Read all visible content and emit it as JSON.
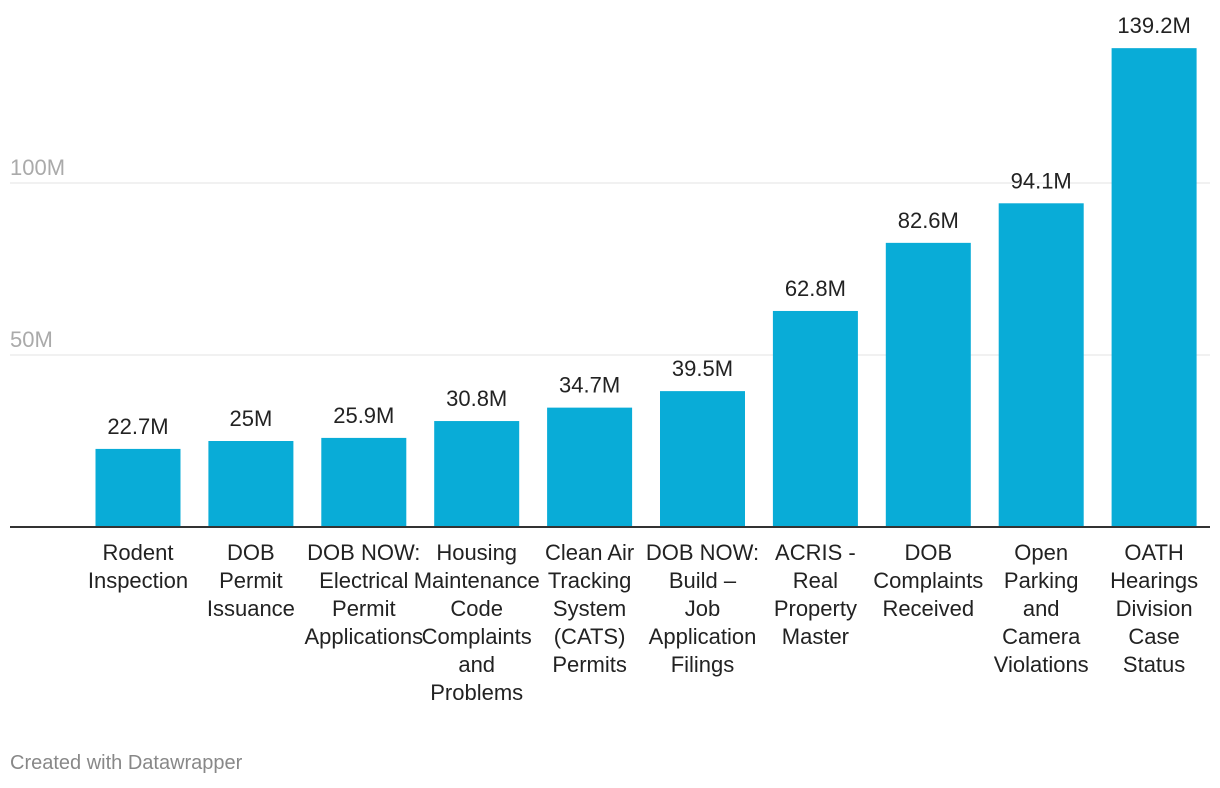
{
  "chart_data": {
    "type": "bar",
    "categories": [
      [
        "Rodent",
        "Inspection"
      ],
      [
        "DOB",
        "Permit",
        "Issuance"
      ],
      [
        "DOB NOW:",
        "Electrical",
        "Permit",
        "Applications"
      ],
      [
        "Housing",
        "Maintenance",
        "Code",
        "Complaints",
        "and",
        "Problems"
      ],
      [
        "Clean Air",
        "Tracking",
        "System",
        "(CATS)",
        "Permits"
      ],
      [
        "DOB NOW:",
        "Build –",
        "Job",
        "Application",
        "Filings"
      ],
      [
        "ACRIS -",
        "Real",
        "Property",
        "Master"
      ],
      [
        "DOB",
        "Complaints",
        "Received"
      ],
      [
        "Open",
        "Parking",
        "and",
        "Camera",
        "Violations"
      ],
      [
        "OATH",
        "Hearings",
        "Division",
        "Case",
        "Status"
      ]
    ],
    "values": [
      22.7,
      25,
      25.9,
      30.8,
      34.7,
      39.5,
      62.8,
      82.6,
      94.1,
      139.2
    ],
    "value_labels": [
      "22.7M",
      "25M",
      "25.9M",
      "30.8M",
      "34.7M",
      "39.5M",
      "62.8M",
      "82.6M",
      "94.1M",
      "139.2M"
    ],
    "yticks": [
      {
        "value": 50,
        "label": "50M"
      },
      {
        "value": 100,
        "label": "100M"
      }
    ],
    "ylim": [
      0,
      150
    ],
    "title": "",
    "xlabel": "",
    "ylabel": "",
    "bar_color": "#09acd7",
    "grid": true
  },
  "footer": {
    "credit": "Created with Datawrapper"
  }
}
